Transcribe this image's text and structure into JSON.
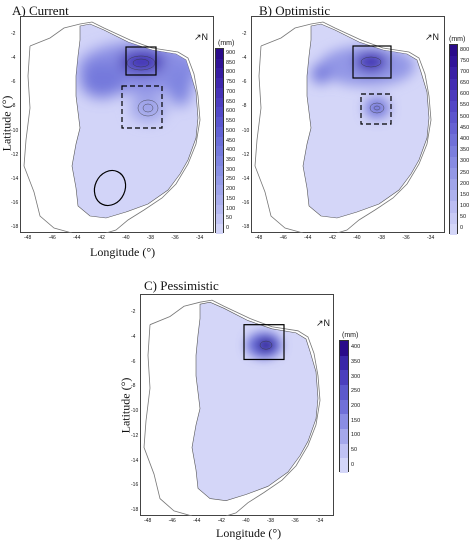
{
  "figure": {
    "x_axis_label": "Longitude (°)",
    "y_axis_label": "Latitude (°)",
    "lon_ticks": [
      "-48",
      "-46",
      "-44",
      "-42",
      "-40",
      "-38",
      "-36",
      "-34"
    ],
    "lat_ticks": [
      "-2",
      "-4",
      "-6",
      "-8",
      "-10",
      "-12",
      "-14",
      "-16",
      "-18"
    ],
    "north_symbol": "north-arrow-icon",
    "unit": "(mm)"
  },
  "panels": [
    {
      "id": "A",
      "title": "A) Current",
      "colorbar_values": [
        "900",
        "850",
        "800",
        "750",
        "700",
        "650",
        "600",
        "550",
        "500",
        "450",
        "400",
        "350",
        "300",
        "250",
        "200",
        "150",
        "100",
        "50",
        "0"
      ],
      "colorbar_colors": [
        "#2a0b8a",
        "#301396",
        "#371da2",
        "#3f28ad",
        "#4633b7",
        "#4d3ec0",
        "#5249c8",
        "#5a56ce",
        "#6262d4",
        "#6b6ed8",
        "#7479dc",
        "#7e84e0",
        "#888fe3",
        "#9399e6",
        "#9ea3e9",
        "#a9adec",
        "#b5b8f0",
        "#c3c5f4",
        "#d2d4f8"
      ],
      "markers": [
        "solid-rectangle",
        "dashed-rectangle",
        "solid-ellipse"
      ]
    },
    {
      "id": "B",
      "title": "B) Optimistic",
      "colorbar_values": [
        "800",
        "750",
        "700",
        "650",
        "600",
        "550",
        "500",
        "450",
        "400",
        "350",
        "300",
        "250",
        "200",
        "150",
        "100",
        "50",
        "0"
      ],
      "colorbar_colors": [
        "#2a0b8a",
        "#311498",
        "#3a20a5",
        "#432db2",
        "#4b3abd",
        "#5347c6",
        "#5c55cd",
        "#6662d3",
        "#7070d8",
        "#7b7edd",
        "#878be2",
        "#9398e6",
        "#a0a5ea",
        "#adb1ee",
        "#bbbdf2",
        "#c8caf5",
        "#d4d6f8"
      ],
      "markers": [
        "solid-rectangle",
        "dashed-rectangle"
      ]
    },
    {
      "id": "C",
      "title": "C) Pessimistic",
      "colorbar_values": [
        "400",
        "350",
        "300",
        "250",
        "200",
        "150",
        "100",
        "50",
        "0"
      ],
      "colorbar_colors": [
        "#2a0b8a",
        "#3a27a8",
        "#4b3fbd",
        "#5c59cc",
        "#7070d8",
        "#8a8de3",
        "#a5a8eb",
        "#c0c2f3",
        "#d4d6f8"
      ],
      "markers": [
        "solid-rectangle"
      ]
    }
  ]
}
